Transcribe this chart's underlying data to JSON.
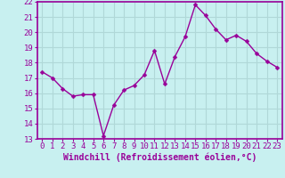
{
  "x": [
    0,
    1,
    2,
    3,
    4,
    5,
    6,
    7,
    8,
    9,
    10,
    11,
    12,
    13,
    14,
    15,
    16,
    17,
    18,
    19,
    20,
    21,
    22,
    23
  ],
  "y": [
    17.4,
    17.0,
    16.3,
    15.8,
    15.9,
    15.9,
    13.2,
    15.2,
    16.2,
    16.5,
    17.2,
    18.8,
    16.6,
    18.4,
    19.7,
    21.8,
    21.1,
    20.2,
    19.5,
    19.8,
    19.4,
    18.6,
    18.1,
    17.7
  ],
  "line_color": "#990099",
  "marker": "D",
  "marker_size": 2.5,
  "line_width": 1.0,
  "xlabel": "Windchill (Refroidissement éolien,°C)",
  "xlabel_fontsize": 7,
  "xlim": [
    -0.5,
    23.5
  ],
  "ylim": [
    13,
    22
  ],
  "yticks": [
    13,
    14,
    15,
    16,
    17,
    18,
    19,
    20,
    21,
    22
  ],
  "xticks": [
    0,
    1,
    2,
    3,
    4,
    5,
    6,
    7,
    8,
    9,
    10,
    11,
    12,
    13,
    14,
    15,
    16,
    17,
    18,
    19,
    20,
    21,
    22,
    23
  ],
  "bg_color": "#c8f0f0",
  "grid_color": "#b0d8d8",
  "tick_fontsize": 6.5,
  "border_color": "#990099",
  "fig_bg": "#c8f0f0"
}
